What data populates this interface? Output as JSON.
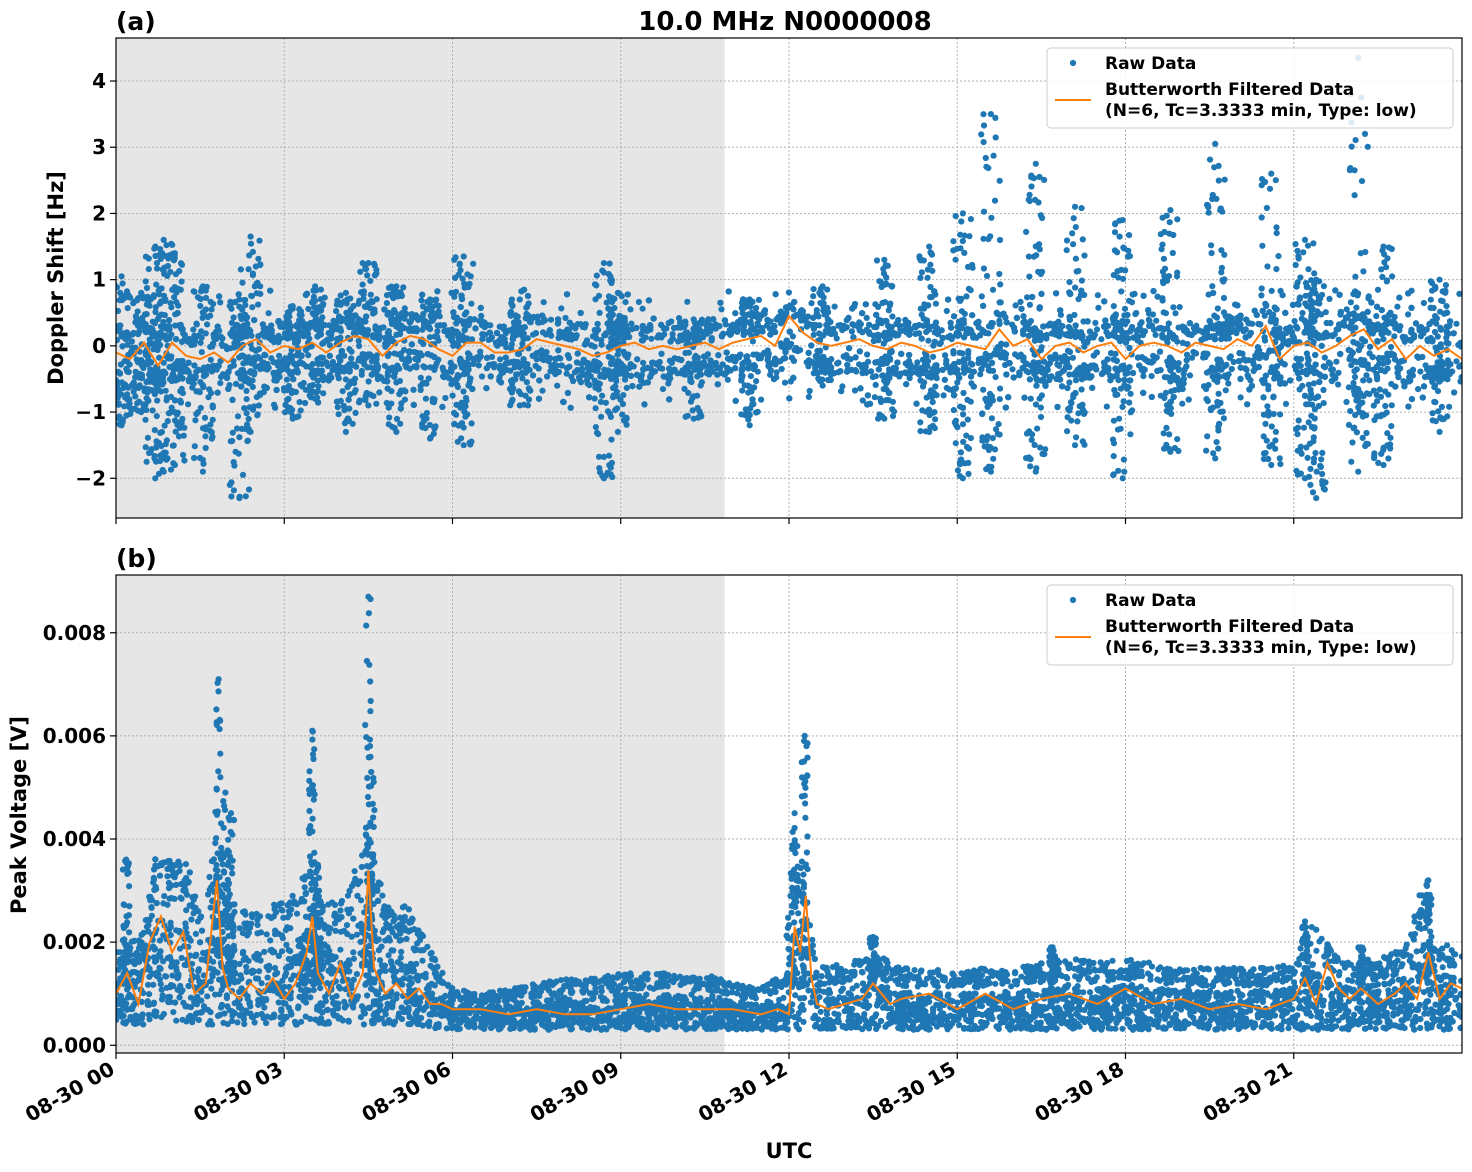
{
  "chart_data": [
    {
      "type": "scatter",
      "title": "10.0 MHz N0000008",
      "panel_label": "(a)",
      "xlabel": "",
      "ylabel": "Doppler Shift [Hz]",
      "xlim": [
        0,
        24
      ],
      "ylim": [
        -2.6,
        4.65
      ],
      "x_units": "hours UTC on 08-30",
      "yticks": [
        -2,
        -1,
        0,
        1,
        2,
        3,
        4
      ],
      "ytick_labels": [
        "−2",
        "−1",
        "0",
        "1",
        "2",
        "3",
        "4"
      ],
      "shaded_interval": [
        0,
        10.85
      ],
      "grid": true,
      "legend_position": "upper right",
      "legend": [
        "Raw Data",
        "Butterworth Filtered Data",
        "(N=6, Tc=3.3333 min, Type: low)"
      ],
      "series": [
        {
          "name": "Raw Data",
          "kind": "scatter",
          "color": "#1f77b4",
          "baseline_band": [
            -0.45,
            0.35
          ],
          "spikes": [
            {
              "x": 0.1,
              "min": -1.2,
              "max": 1.05
            },
            {
              "x": 0.45,
              "min": -1.0,
              "max": 0.8
            },
            {
              "x": 0.7,
              "min": -2.0,
              "max": 1.5
            },
            {
              "x": 0.85,
              "min": -1.9,
              "max": 1.6
            },
            {
              "x": 1.05,
              "min": -1.8,
              "max": 1.4
            },
            {
              "x": 1.55,
              "min": -1.9,
              "max": 0.9
            },
            {
              "x": 2.2,
              "min": -2.3,
              "max": 0.7
            },
            {
              "x": 2.4,
              "min": -1.3,
              "max": 1.65
            },
            {
              "x": 3.15,
              "min": -1.1,
              "max": 0.6
            },
            {
              "x": 3.55,
              "min": -0.8,
              "max": 0.9
            },
            {
              "x": 4.1,
              "min": -1.3,
              "max": 0.8
            },
            {
              "x": 4.5,
              "min": -0.9,
              "max": 1.25
            },
            {
              "x": 5.0,
              "min": -1.3,
              "max": 0.9
            },
            {
              "x": 5.6,
              "min": -1.4,
              "max": 0.7
            },
            {
              "x": 6.2,
              "min": -1.5,
              "max": 1.35
            },
            {
              "x": 7.2,
              "min": -0.9,
              "max": 0.7
            },
            {
              "x": 8.7,
              "min": -2.0,
              "max": 1.25
            },
            {
              "x": 8.95,
              "min": -1.3,
              "max": 0.8
            },
            {
              "x": 10.3,
              "min": -1.1,
              "max": 0.4
            },
            {
              "x": 11.3,
              "min": -1.2,
              "max": 0.7
            },
            {
              "x": 12.6,
              "min": -0.6,
              "max": 0.9
            },
            {
              "x": 13.7,
              "min": -1.1,
              "max": 1.3
            },
            {
              "x": 14.5,
              "min": -1.3,
              "max": 1.5
            },
            {
              "x": 15.1,
              "min": -2.0,
              "max": 2.0
            },
            {
              "x": 15.6,
              "min": -1.9,
              "max": 3.5
            },
            {
              "x": 16.4,
              "min": -1.9,
              "max": 2.75
            },
            {
              "x": 17.1,
              "min": -1.5,
              "max": 2.1
            },
            {
              "x": 17.95,
              "min": -2.0,
              "max": 1.9
            },
            {
              "x": 18.8,
              "min": -1.6,
              "max": 2.05
            },
            {
              "x": 19.6,
              "min": -1.7,
              "max": 3.05
            },
            {
              "x": 20.6,
              "min": -1.8,
              "max": 2.6
            },
            {
              "x": 21.2,
              "min": -2.0,
              "max": 1.6
            },
            {
              "x": 21.4,
              "min": -2.3,
              "max": 1.0
            },
            {
              "x": 22.15,
              "min": -1.9,
              "max": 4.35
            },
            {
              "x": 22.6,
              "min": -1.8,
              "max": 1.5
            },
            {
              "x": 23.6,
              "min": -1.3,
              "max": 1.0
            }
          ]
        },
        {
          "name": "Butterworth Filtered Data",
          "kind": "line",
          "color": "#ff7f0e",
          "x": [
            0,
            0.25,
            0.5,
            0.75,
            1,
            1.25,
            1.5,
            1.75,
            2,
            2.25,
            2.5,
            2.75,
            3,
            3.25,
            3.5,
            3.75,
            4,
            4.25,
            4.5,
            4.75,
            5,
            5.25,
            5.5,
            5.75,
            6,
            6.25,
            6.5,
            6.75,
            7,
            7.25,
            7.5,
            7.75,
            8,
            8.25,
            8.5,
            8.75,
            9,
            9.25,
            9.5,
            9.75,
            10,
            10.25,
            10.5,
            10.75,
            11,
            11.25,
            11.5,
            11.75,
            12,
            12.25,
            12.5,
            12.75,
            13,
            13.25,
            13.5,
            13.75,
            14,
            14.25,
            14.5,
            14.75,
            15,
            15.25,
            15.5,
            15.75,
            16,
            16.25,
            16.5,
            16.75,
            17,
            17.25,
            17.5,
            17.75,
            18,
            18.25,
            18.5,
            18.75,
            19,
            19.25,
            19.5,
            19.75,
            20,
            20.25,
            20.5,
            20.75,
            21,
            21.25,
            21.5,
            21.75,
            22,
            22.25,
            22.5,
            22.75,
            23,
            23.25,
            23.5,
            23.75,
            24
          ],
          "y": [
            -0.1,
            -0.2,
            0.05,
            -0.3,
            0.05,
            -0.15,
            -0.2,
            -0.1,
            -0.25,
            0,
            0.1,
            -0.1,
            0,
            -0.05,
            0.05,
            -0.1,
            0.05,
            0.15,
            0.1,
            -0.15,
            0.05,
            0.15,
            0.1,
            -0.05,
            -0.15,
            0.05,
            0.05,
            -0.1,
            -0.1,
            -0.05,
            0.1,
            0.05,
            0.0,
            -0.05,
            -0.15,
            -0.1,
            0,
            0.05,
            -0.05,
            0.0,
            -0.05,
            0.0,
            0.05,
            -0.05,
            0.05,
            0.1,
            0.15,
            0.0,
            0.45,
            0.2,
            0.05,
            0.0,
            0.05,
            0.1,
            0.0,
            -0.05,
            0.05,
            0.0,
            -0.1,
            -0.05,
            0.05,
            0.0,
            -0.05,
            0.25,
            0.0,
            0.1,
            -0.2,
            0.0,
            0.05,
            -0.1,
            0.0,
            0.05,
            -0.2,
            0.0,
            0.05,
            0.0,
            -0.1,
            0.05,
            0.0,
            -0.05,
            0.1,
            0.0,
            0.3,
            -0.2,
            0.0,
            0.05,
            -0.1,
            0.0,
            0.15,
            0.25,
            -0.05,
            0.1,
            -0.2,
            0.0,
            -0.15,
            -0.05,
            -0.2
          ]
        }
      ]
    },
    {
      "type": "scatter",
      "panel_label": "(b)",
      "xlabel": "UTC",
      "ylabel": "Peak Voltage [V]",
      "xlim": [
        0,
        24
      ],
      "ylim": [
        -0.00015,
        0.00912
      ],
      "yticks": [
        0,
        0.002,
        0.004,
        0.006,
        0.008
      ],
      "ytick_labels": [
        "0.000",
        "0.002",
        "0.004",
        "0.006",
        "0.008"
      ],
      "xticks": [
        0,
        3,
        6,
        9,
        12,
        15,
        18,
        21
      ],
      "xtick_labels": [
        "08-30 00",
        "08-30 03",
        "08-30 06",
        "08-30 09",
        "08-30 12",
        "08-30 15",
        "08-30 18",
        "08-30 21"
      ],
      "shaded_interval": [
        0,
        10.85
      ],
      "grid": true,
      "legend_position": "upper right",
      "legend": [
        "Raw Data",
        "Butterworth Filtered Data",
        "(N=6, Tc=3.3333 min, Type: low)"
      ],
      "series": [
        {
          "name": "Raw Data",
          "kind": "scatter",
          "color": "#1f77b4",
          "envelope_x": [
            0,
            0.5,
            0.7,
            1.0,
            1.3,
            1.5,
            1.8,
            2.0,
            2.5,
            3.0,
            3.3,
            3.5,
            3.8,
            4.1,
            4.5,
            4.8,
            5.2,
            5.5,
            6.0,
            6.5,
            7.0,
            7.5,
            8.0,
            8.5,
            9.0,
            9.5,
            10.0,
            10.5,
            11.0,
            11.5,
            11.9,
            12.1,
            12.3,
            12.5,
            13.0,
            13.5,
            14.0,
            14.5,
            15.0,
            15.5,
            16.0,
            16.5,
            17.0,
            17.5,
            18.0,
            18.5,
            19.0,
            19.5,
            20.0,
            20.5,
            21.0,
            21.3,
            21.5,
            22.0,
            22.5,
            23.0,
            23.3,
            23.6,
            24.0
          ],
          "envelope_low": [
            0.0004,
            0.0004,
            0.0005,
            0.0005,
            0.0004,
            0.0004,
            0.0004,
            0.0004,
            0.0004,
            0.0004,
            0.0004,
            0.0004,
            0.0004,
            0.0004,
            0.0004,
            0.0004,
            0.0004,
            0.00035,
            0.0003,
            0.0003,
            0.0003,
            0.0003,
            0.0003,
            0.0003,
            0.0003,
            0.0003,
            0.0003,
            0.0003,
            0.0003,
            0.0003,
            0.0003,
            0.0003,
            0.0003,
            0.0003,
            0.0003,
            0.0003,
            0.0003,
            0.0003,
            0.0003,
            0.0003,
            0.0003,
            0.0003,
            0.0003,
            0.0003,
            0.0003,
            0.0003,
            0.0003,
            0.0003,
            0.0003,
            0.0003,
            0.0003,
            0.0003,
            0.0003,
            0.0003,
            0.0003,
            0.0003,
            0.0003,
            0.0003,
            0.0003
          ],
          "envelope_high": [
            0.0018,
            0.0022,
            0.0037,
            0.0036,
            0.0035,
            0.0025,
            0.0042,
            0.0028,
            0.0026,
            0.0028,
            0.0033,
            0.0033,
            0.0028,
            0.0028,
            0.0043,
            0.0027,
            0.0027,
            0.0021,
            0.0011,
            0.001,
            0.0011,
            0.0012,
            0.0013,
            0.0013,
            0.0014,
            0.0014,
            0.0014,
            0.0014,
            0.0012,
            0.0011,
            0.0014,
            0.0045,
            0.0029,
            0.0015,
            0.0016,
            0.0018,
            0.0015,
            0.0015,
            0.0014,
            0.0015,
            0.0015,
            0.0016,
            0.0017,
            0.0016,
            0.0017,
            0.0016,
            0.0015,
            0.0015,
            0.0015,
            0.0015,
            0.0016,
            0.0024,
            0.0021,
            0.0016,
            0.0017,
            0.0019,
            0.0032,
            0.002,
            0.0019
          ],
          "spikes": [
            {
              "x": 0.18,
              "max": 0.0036
            },
            {
              "x": 1.83,
              "max": 0.0071
            },
            {
              "x": 1.95,
              "max": 0.0049
            },
            {
              "x": 2.05,
              "max": 0.0045
            },
            {
              "x": 3.5,
              "max": 0.0061
            },
            {
              "x": 3.6,
              "max": 0.0035
            },
            {
              "x": 4.5,
              "max": 0.0087
            },
            {
              "x": 4.55,
              "max": 0.0053
            },
            {
              "x": 12.1,
              "max": 0.0045
            },
            {
              "x": 12.28,
              "max": 0.006
            },
            {
              "x": 13.5,
              "max": 0.0021
            },
            {
              "x": 16.7,
              "max": 0.0019
            },
            {
              "x": 21.2,
              "max": 0.0024
            },
            {
              "x": 22.2,
              "max": 0.0019
            },
            {
              "x": 23.4,
              "max": 0.0032
            }
          ]
        },
        {
          "name": "Butterworth Filtered Data",
          "kind": "line",
          "color": "#ff7f0e",
          "x": [
            0,
            0.2,
            0.4,
            0.6,
            0.8,
            1.0,
            1.2,
            1.4,
            1.6,
            1.8,
            1.9,
            2.0,
            2.2,
            2.4,
            2.6,
            2.8,
            3.0,
            3.2,
            3.4,
            3.5,
            3.6,
            3.8,
            4.0,
            4.2,
            4.4,
            4.5,
            4.6,
            4.8,
            5.0,
            5.2,
            5.4,
            5.6,
            5.8,
            6.0,
            6.5,
            7.0,
            7.5,
            8.0,
            8.5,
            9.0,
            9.5,
            10.0,
            10.5,
            11.0,
            11.5,
            11.8,
            12.0,
            12.1,
            12.2,
            12.3,
            12.4,
            12.5,
            12.7,
            13.0,
            13.3,
            13.5,
            13.8,
            14.0,
            14.5,
            15.0,
            15.5,
            16.0,
            16.5,
            17.0,
            17.5,
            18.0,
            18.5,
            19.0,
            19.5,
            20.0,
            20.5,
            21.0,
            21.2,
            21.4,
            21.6,
            21.8,
            22.0,
            22.2,
            22.5,
            22.8,
            23.0,
            23.2,
            23.4,
            23.6,
            23.8,
            24.0
          ],
          "y": [
            0.001,
            0.0014,
            0.0008,
            0.002,
            0.0025,
            0.0018,
            0.0022,
            0.001,
            0.0012,
            0.0032,
            0.0015,
            0.0011,
            0.0009,
            0.0012,
            0.001,
            0.0013,
            0.0009,
            0.0012,
            0.0018,
            0.0025,
            0.0014,
            0.001,
            0.0016,
            0.0009,
            0.0014,
            0.0034,
            0.0015,
            0.001,
            0.0012,
            0.0009,
            0.0011,
            0.0008,
            0.0008,
            0.0007,
            0.0007,
            0.0006,
            0.0007,
            0.0006,
            0.0006,
            0.0007,
            0.0008,
            0.0007,
            0.0007,
            0.0007,
            0.0006,
            0.0007,
            0.0006,
            0.0023,
            0.0018,
            0.0029,
            0.0013,
            0.0008,
            0.0007,
            0.0008,
            0.0009,
            0.0012,
            0.0008,
            0.0009,
            0.001,
            0.0007,
            0.001,
            0.0007,
            0.0009,
            0.001,
            0.0008,
            0.0011,
            0.0008,
            0.0009,
            0.0007,
            0.0008,
            0.0007,
            0.0009,
            0.0013,
            0.0008,
            0.0016,
            0.0011,
            0.0009,
            0.0011,
            0.0008,
            0.001,
            0.0012,
            0.0009,
            0.0018,
            0.0009,
            0.0012,
            0.0011
          ]
        }
      ]
    }
  ]
}
